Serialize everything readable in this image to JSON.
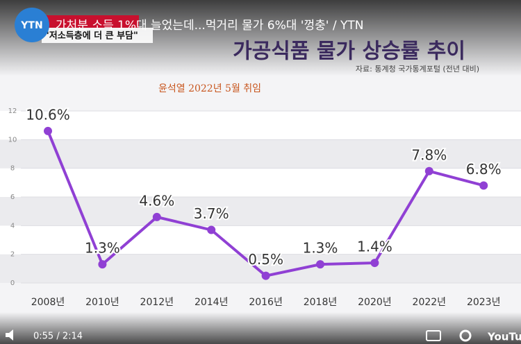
{
  "video": {
    "title": "가처분 소득 1%대 늘었는데...먹거리 물가 6%대 '껑충' / YTN",
    "channel": "YTN",
    "caption": "\"저소득층에 더 큰 부담\"",
    "time": "0:55 / 2:14",
    "brand": "YouTube"
  },
  "chart_data": {
    "type": "line",
    "title": "가공식품 물가 상승률 추이",
    "subtitle": "자료: 통계청 국가통계포털 (전년 대비)",
    "annotation": "윤석열 2022년 5월 취임",
    "categories": [
      "2008년",
      "2010년",
      "2012년",
      "2014년",
      "2016년",
      "2018년",
      "2020년",
      "2022년",
      "2023년"
    ],
    "values": [
      10.6,
      1.3,
      4.6,
      3.7,
      0.5,
      1.3,
      1.4,
      7.8,
      6.8
    ],
    "value_labels": [
      "10.6%",
      "1.3%",
      "4.6%",
      "3.7%",
      "0.5%",
      "1.3%",
      "1.4%",
      "7.8%",
      "6.8%"
    ],
    "color": "#9040d4",
    "ylim": [
      0,
      12
    ],
    "yticks": [
      0,
      2,
      4,
      6,
      8,
      10,
      12
    ]
  }
}
